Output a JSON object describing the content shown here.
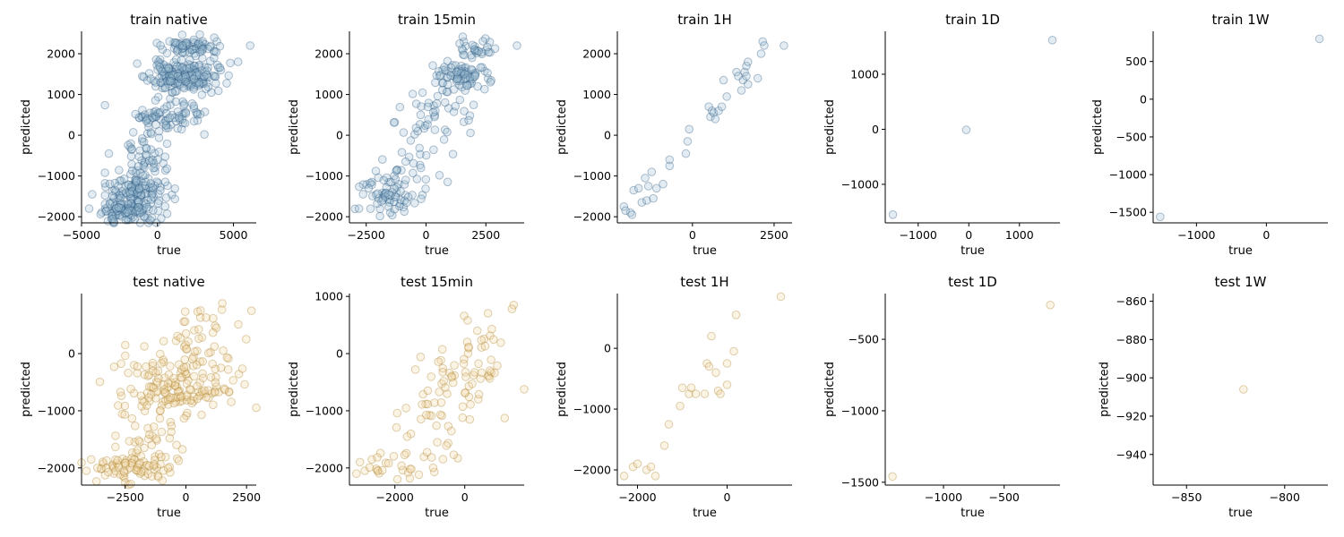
{
  "figure": {
    "background": "#ffffff"
  },
  "colors": {
    "train_face": "#9fbfd3",
    "train_edge": "#1f4e79",
    "test_face": "#f1d6a6",
    "test_edge": "#a67c1f"
  },
  "chart_data": [
    {
      "type": "scatter",
      "title": "train native",
      "xlabel": "true",
      "ylabel": "predicted",
      "xlim": [
        -5000,
        6500
      ],
      "ylim": [
        -2150,
        2550
      ],
      "xticks": [
        -5000,
        0,
        5000
      ],
      "xtick_labels": [
        "−5000",
        "0",
        "5000"
      ],
      "yticks": [
        -2000,
        -1000,
        0,
        1000,
        2000
      ],
      "ytick_labels": [
        "−2000",
        "−1000",
        "0",
        "1000",
        "2000"
      ],
      "group": "train",
      "seed": 11,
      "n": 600,
      "clusters": [
        {
          "cx": 1600,
          "cy": 1450,
          "sx": 1100,
          "sy": 180,
          "w": 0.3
        },
        {
          "cx": 2200,
          "cy": 2150,
          "sx": 900,
          "sy": 150,
          "w": 0.12
        },
        {
          "cx": 700,
          "cy": 450,
          "sx": 1200,
          "sy": 200,
          "w": 0.13
        },
        {
          "cx": -1400,
          "cy": -1400,
          "sx": 1000,
          "sy": 350,
          "w": 0.28
        },
        {
          "cx": -2300,
          "cy": -1850,
          "sx": 800,
          "sy": 120,
          "w": 0.1
        },
        {
          "cx": -700,
          "cy": -400,
          "sx": 800,
          "sy": 400,
          "w": 0.07
        }
      ],
      "extra": [
        [
          6100,
          2200
        ],
        [
          -4500,
          -1800
        ],
        [
          -4300,
          -1450
        ],
        [
          5300,
          1800
        ],
        [
          -3200,
          -450
        ]
      ]
    },
    {
      "type": "scatter",
      "title": "train 15min",
      "xlabel": "true",
      "ylabel": "predicted",
      "xlim": [
        -3200,
        4100
      ],
      "ylim": [
        -2150,
        2550
      ],
      "xticks": [
        -2500,
        0,
        2500
      ],
      "xtick_labels": [
        "−2500",
        "0",
        "2500"
      ],
      "yticks": [
        -2000,
        -1000,
        0,
        1000,
        2000
      ],
      "ytick_labels": [
        "−2000",
        "−1000",
        "0",
        "1000",
        "2000"
      ],
      "group": "train",
      "seed": 23,
      "n": 240,
      "clusters": [
        {
          "cx": 1400,
          "cy": 1450,
          "sx": 600,
          "sy": 180,
          "w": 0.32
        },
        {
          "cx": 2200,
          "cy": 2150,
          "sx": 500,
          "sy": 150,
          "w": 0.12
        },
        {
          "cx": 400,
          "cy": 400,
          "sx": 700,
          "sy": 350,
          "w": 0.18
        },
        {
          "cx": -1600,
          "cy": -1500,
          "sx": 600,
          "sy": 300,
          "w": 0.28
        },
        {
          "cx": -800,
          "cy": -500,
          "sx": 500,
          "sy": 400,
          "w": 0.1
        }
      ],
      "extra": [
        [
          3800,
          2200
        ],
        [
          -2800,
          -1800
        ],
        [
          -2400,
          -1300
        ]
      ]
    },
    {
      "type": "scatter",
      "title": "train 1H",
      "xlabel": "true",
      "ylabel": "predicted",
      "xlim": [
        -2300,
        3050
      ],
      "ylim": [
        -2150,
        2550
      ],
      "xticks": [
        0,
        2500
      ],
      "xtick_labels": [
        "0",
        "2500"
      ],
      "yticks": [
        -2000,
        -1000,
        0,
        1000,
        2000
      ],
      "ytick_labels": [
        "−2000",
        "−1000",
        "0",
        "1000",
        "2000"
      ],
      "group": "train",
      "points": [
        [
          -2100,
          -1750
        ],
        [
          -2050,
          -1850
        ],
        [
          -1900,
          -1900
        ],
        [
          -1850,
          -1950
        ],
        [
          -1800,
          -1350
        ],
        [
          -1650,
          -1300
        ],
        [
          -1550,
          -1650
        ],
        [
          -1450,
          -1050
        ],
        [
          -1400,
          -1600
        ],
        [
          -1350,
          -1250
        ],
        [
          -1250,
          -900
        ],
        [
          -1200,
          -1550
        ],
        [
          -1100,
          -1300
        ],
        [
          -900,
          -1200
        ],
        [
          -700,
          -750
        ],
        [
          -700,
          -600
        ],
        [
          -200,
          -450
        ],
        [
          -150,
          -150
        ],
        [
          -100,
          150
        ],
        [
          500,
          700
        ],
        [
          550,
          450
        ],
        [
          600,
          600
        ],
        [
          650,
          550
        ],
        [
          700,
          400
        ],
        [
          800,
          600
        ],
        [
          900,
          700
        ],
        [
          950,
          1350
        ],
        [
          1050,
          950
        ],
        [
          1350,
          1550
        ],
        [
          1400,
          1450
        ],
        [
          1500,
          1100
        ],
        [
          1550,
          1350
        ],
        [
          1600,
          1550
        ],
        [
          1650,
          1450
        ],
        [
          1650,
          1700
        ],
        [
          1700,
          1250
        ],
        [
          1700,
          1800
        ],
        [
          2000,
          1400
        ],
        [
          2100,
          2000
        ],
        [
          2150,
          2300
        ],
        [
          2200,
          2200
        ],
        [
          2800,
          2200
        ]
      ]
    },
    {
      "type": "scatter",
      "title": "train 1D",
      "xlabel": "true",
      "ylabel": "predicted",
      "xlim": [
        -1650,
        1800
      ],
      "ylim": [
        -1700,
        1780
      ],
      "xticks": [
        -1000,
        0,
        1000
      ],
      "xtick_labels": [
        "−1000",
        "0",
        "1000"
      ],
      "yticks": [
        -1000,
        0,
        1000
      ],
      "ytick_labels": [
        "−1000",
        "0",
        "1000"
      ],
      "group": "train",
      "points": [
        [
          -1500,
          -1550
        ],
        [
          -50,
          -10
        ],
        [
          1650,
          1620
        ]
      ]
    },
    {
      "type": "scatter",
      "title": "train 1W",
      "xlabel": "true",
      "ylabel": "predicted",
      "xlim": [
        -1620,
        880
      ],
      "ylim": [
        -1640,
        900
      ],
      "xticks": [
        -1000,
        0
      ],
      "xtick_labels": [
        "−1000",
        "0"
      ],
      "yticks": [
        -1500,
        -1000,
        -500,
        0,
        500
      ],
      "ytick_labels": [
        "−1500",
        "−1000",
        "−500",
        "0",
        "500"
      ],
      "group": "train",
      "points": [
        [
          -1520,
          -1560
        ],
        [
          760,
          800
        ]
      ]
    },
    {
      "type": "scatter",
      "title": "test native",
      "xlabel": "true",
      "ylabel": "predicted",
      "xlim": [
        -4300,
        2900
      ],
      "ylim": [
        -2300,
        1050
      ],
      "xticks": [
        -2500,
        0,
        2500
      ],
      "xtick_labels": [
        "−2500",
        "0",
        "2500"
      ],
      "yticks": [
        -2000,
        -1000,
        0
      ],
      "ytick_labels": [
        "−2000",
        "−1000",
        "0"
      ],
      "group": "test",
      "seed": 37,
      "n": 300,
      "clusters": [
        {
          "cx": -300,
          "cy": -650,
          "sx": 1200,
          "sy": 250,
          "w": 0.4
        },
        {
          "cx": 0,
          "cy": -250,
          "sx": 1100,
          "sy": 200,
          "w": 0.15
        },
        {
          "cx": -2200,
          "cy": -2000,
          "sx": 900,
          "sy": 120,
          "w": 0.25
        },
        {
          "cx": -1200,
          "cy": -1500,
          "sx": 700,
          "sy": 300,
          "w": 0.1
        },
        {
          "cx": 500,
          "cy": 400,
          "sx": 700,
          "sy": 250,
          "w": 0.1
        }
      ],
      "extra": [
        [
          2700,
          750
        ],
        [
          -4100,
          -2050
        ],
        [
          1500,
          880
        ],
        [
          -3900,
          -1850
        ],
        [
          -2500,
          150
        ]
      ]
    },
    {
      "type": "scatter",
      "title": "test 15min",
      "xlabel": "true",
      "ylabel": "predicted",
      "xlim": [
        -3300,
        1700
      ],
      "ylim": [
        -2300,
        1050
      ],
      "xticks": [
        -2000,
        0
      ],
      "xtick_labels": [
        "−2000",
        "0"
      ],
      "yticks": [
        -2000,
        -1000,
        0,
        1000
      ],
      "ytick_labels": [
        "−2000",
        "−1000",
        "0",
        "1000"
      ],
      "group": "test",
      "seed": 51,
      "n": 120,
      "clusters": [
        {
          "cx": -300,
          "cy": -550,
          "sx": 700,
          "sy": 300,
          "w": 0.45
        },
        {
          "cx": -1900,
          "cy": -1950,
          "sx": 600,
          "sy": 150,
          "w": 0.25
        },
        {
          "cx": -1000,
          "cy": -1300,
          "sx": 500,
          "sy": 300,
          "w": 0.15
        },
        {
          "cx": 300,
          "cy": 300,
          "sx": 400,
          "sy": 250,
          "w": 0.15
        }
      ],
      "extra": [
        [
          1400,
          850
        ],
        [
          1350,
          780
        ],
        [
          -3100,
          -2100
        ],
        [
          -3000,
          -1900
        ]
      ]
    },
    {
      "type": "scatter",
      "title": "test 1H",
      "xlabel": "true",
      "ylabel": "predicted",
      "xlim": [
        -2450,
        1450
      ],
      "ylim": [
        -2250,
        900
      ],
      "xticks": [
        -2000,
        0
      ],
      "xtick_labels": [
        "−2000",
        "0"
      ],
      "yticks": [
        -2000,
        -1000,
        0
      ],
      "ytick_labels": [
        "−2000",
        "−1000",
        "0"
      ],
      "group": "test",
      "points": [
        [
          -2300,
          -2100
        ],
        [
          -2100,
          -1950
        ],
        [
          -2000,
          -1900
        ],
        [
          -1800,
          -2000
        ],
        [
          -1700,
          -1950
        ],
        [
          -1600,
          -2100
        ],
        [
          -1400,
          -1600
        ],
        [
          -1300,
          -1250
        ],
        [
          -1050,
          -950
        ],
        [
          -1000,
          -650
        ],
        [
          -850,
          -750
        ],
        [
          -800,
          -650
        ],
        [
          -700,
          -750
        ],
        [
          -500,
          -750
        ],
        [
          -450,
          -250
        ],
        [
          -400,
          -300
        ],
        [
          -350,
          200
        ],
        [
          -250,
          -400
        ],
        [
          -200,
          -700
        ],
        [
          -150,
          -750
        ],
        [
          0,
          -600
        ],
        [
          0,
          -250
        ],
        [
          150,
          -50
        ],
        [
          200,
          550
        ],
        [
          1200,
          850
        ]
      ]
    },
    {
      "type": "scatter",
      "title": "test 1D",
      "xlabel": "true",
      "ylabel": "predicted",
      "xlim": [
        -1480,
        -40
      ],
      "ylim": [
        -1520,
        -180
      ],
      "xticks": [
        -1000,
        -500
      ],
      "xtick_labels": [
        "−1000",
        "−500"
      ],
      "yticks": [
        -1500,
        -1000,
        -500
      ],
      "ytick_labels": [
        "−1500",
        "−1000",
        "−500"
      ],
      "group": "test",
      "points": [
        [
          -1420,
          -1460
        ],
        [
          -120,
          -260
        ]
      ]
    },
    {
      "type": "scatter",
      "title": "test 1W",
      "xlabel": "true",
      "ylabel": "predicted",
      "xlim": [
        -867,
        -778
      ],
      "ylim": [
        -956,
        -856
      ],
      "xticks": [
        -850,
        -800
      ],
      "xtick_labels": [
        "−850",
        "−800"
      ],
      "yticks": [
        -940,
        -920,
        -900,
        -880,
        -860
      ],
      "ytick_labels": [
        "−940",
        "−920",
        "−900",
        "−880",
        "−860"
      ],
      "group": "test",
      "points": [
        [
          -821,
          -906
        ]
      ]
    }
  ]
}
